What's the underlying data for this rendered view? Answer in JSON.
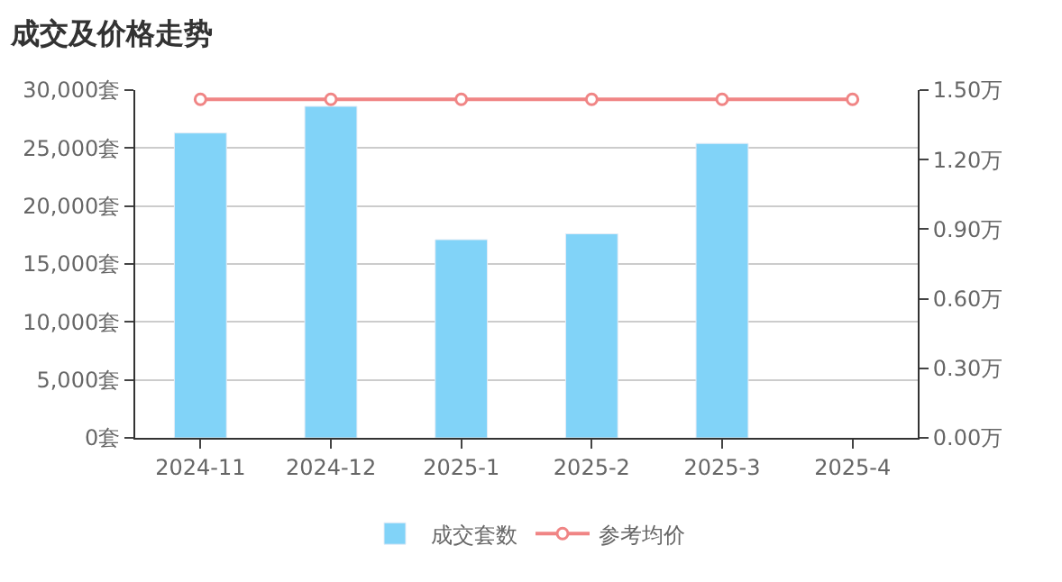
{
  "chart_data": {
    "type": "bar",
    "title": "成交及价格走势",
    "categories": [
      "2024-11",
      "2024-12",
      "2025-1",
      "2025-2",
      "2025-3",
      "2025-4"
    ],
    "series": [
      {
        "name": "成交套数",
        "color": "#81d3f8",
        "values": [
          26300,
          28600,
          17100,
          17600,
          25400,
          null
        ]
      },
      {
        "name": "参考均价",
        "type": "line",
        "axis": "y2",
        "color": "#f08585",
        "marker": "circle",
        "line_style": "solid",
        "values": [
          1.46,
          1.46,
          1.46,
          1.46,
          1.46,
          1.46
        ]
      }
    ],
    "ylim": [
      0,
      30000
    ],
    "yticks": [
      {
        "value": 0,
        "label": "0套"
      },
      {
        "value": 5000,
        "label": "5,000套"
      },
      {
        "value": 10000,
        "label": "10,000套"
      },
      {
        "value": 15000,
        "label": "15,000套"
      },
      {
        "value": 20000,
        "label": "20,000套"
      },
      {
        "value": 25000,
        "label": "25,000套"
      },
      {
        "value": 30000,
        "label": "30,000套"
      }
    ],
    "y2lim": [
      0,
      1.5
    ],
    "y2ticks": [
      {
        "value": 0,
        "label": "0.00万"
      },
      {
        "value": 0.3,
        "label": "0.30万"
      },
      {
        "value": 0.6,
        "label": "0.60万"
      },
      {
        "value": 0.9,
        "label": "0.90万"
      },
      {
        "value": 1.2,
        "label": "1.20万"
      },
      {
        "value": 1.5,
        "label": "1.50万"
      }
    ],
    "grid": "y",
    "legend": "bottom"
  }
}
